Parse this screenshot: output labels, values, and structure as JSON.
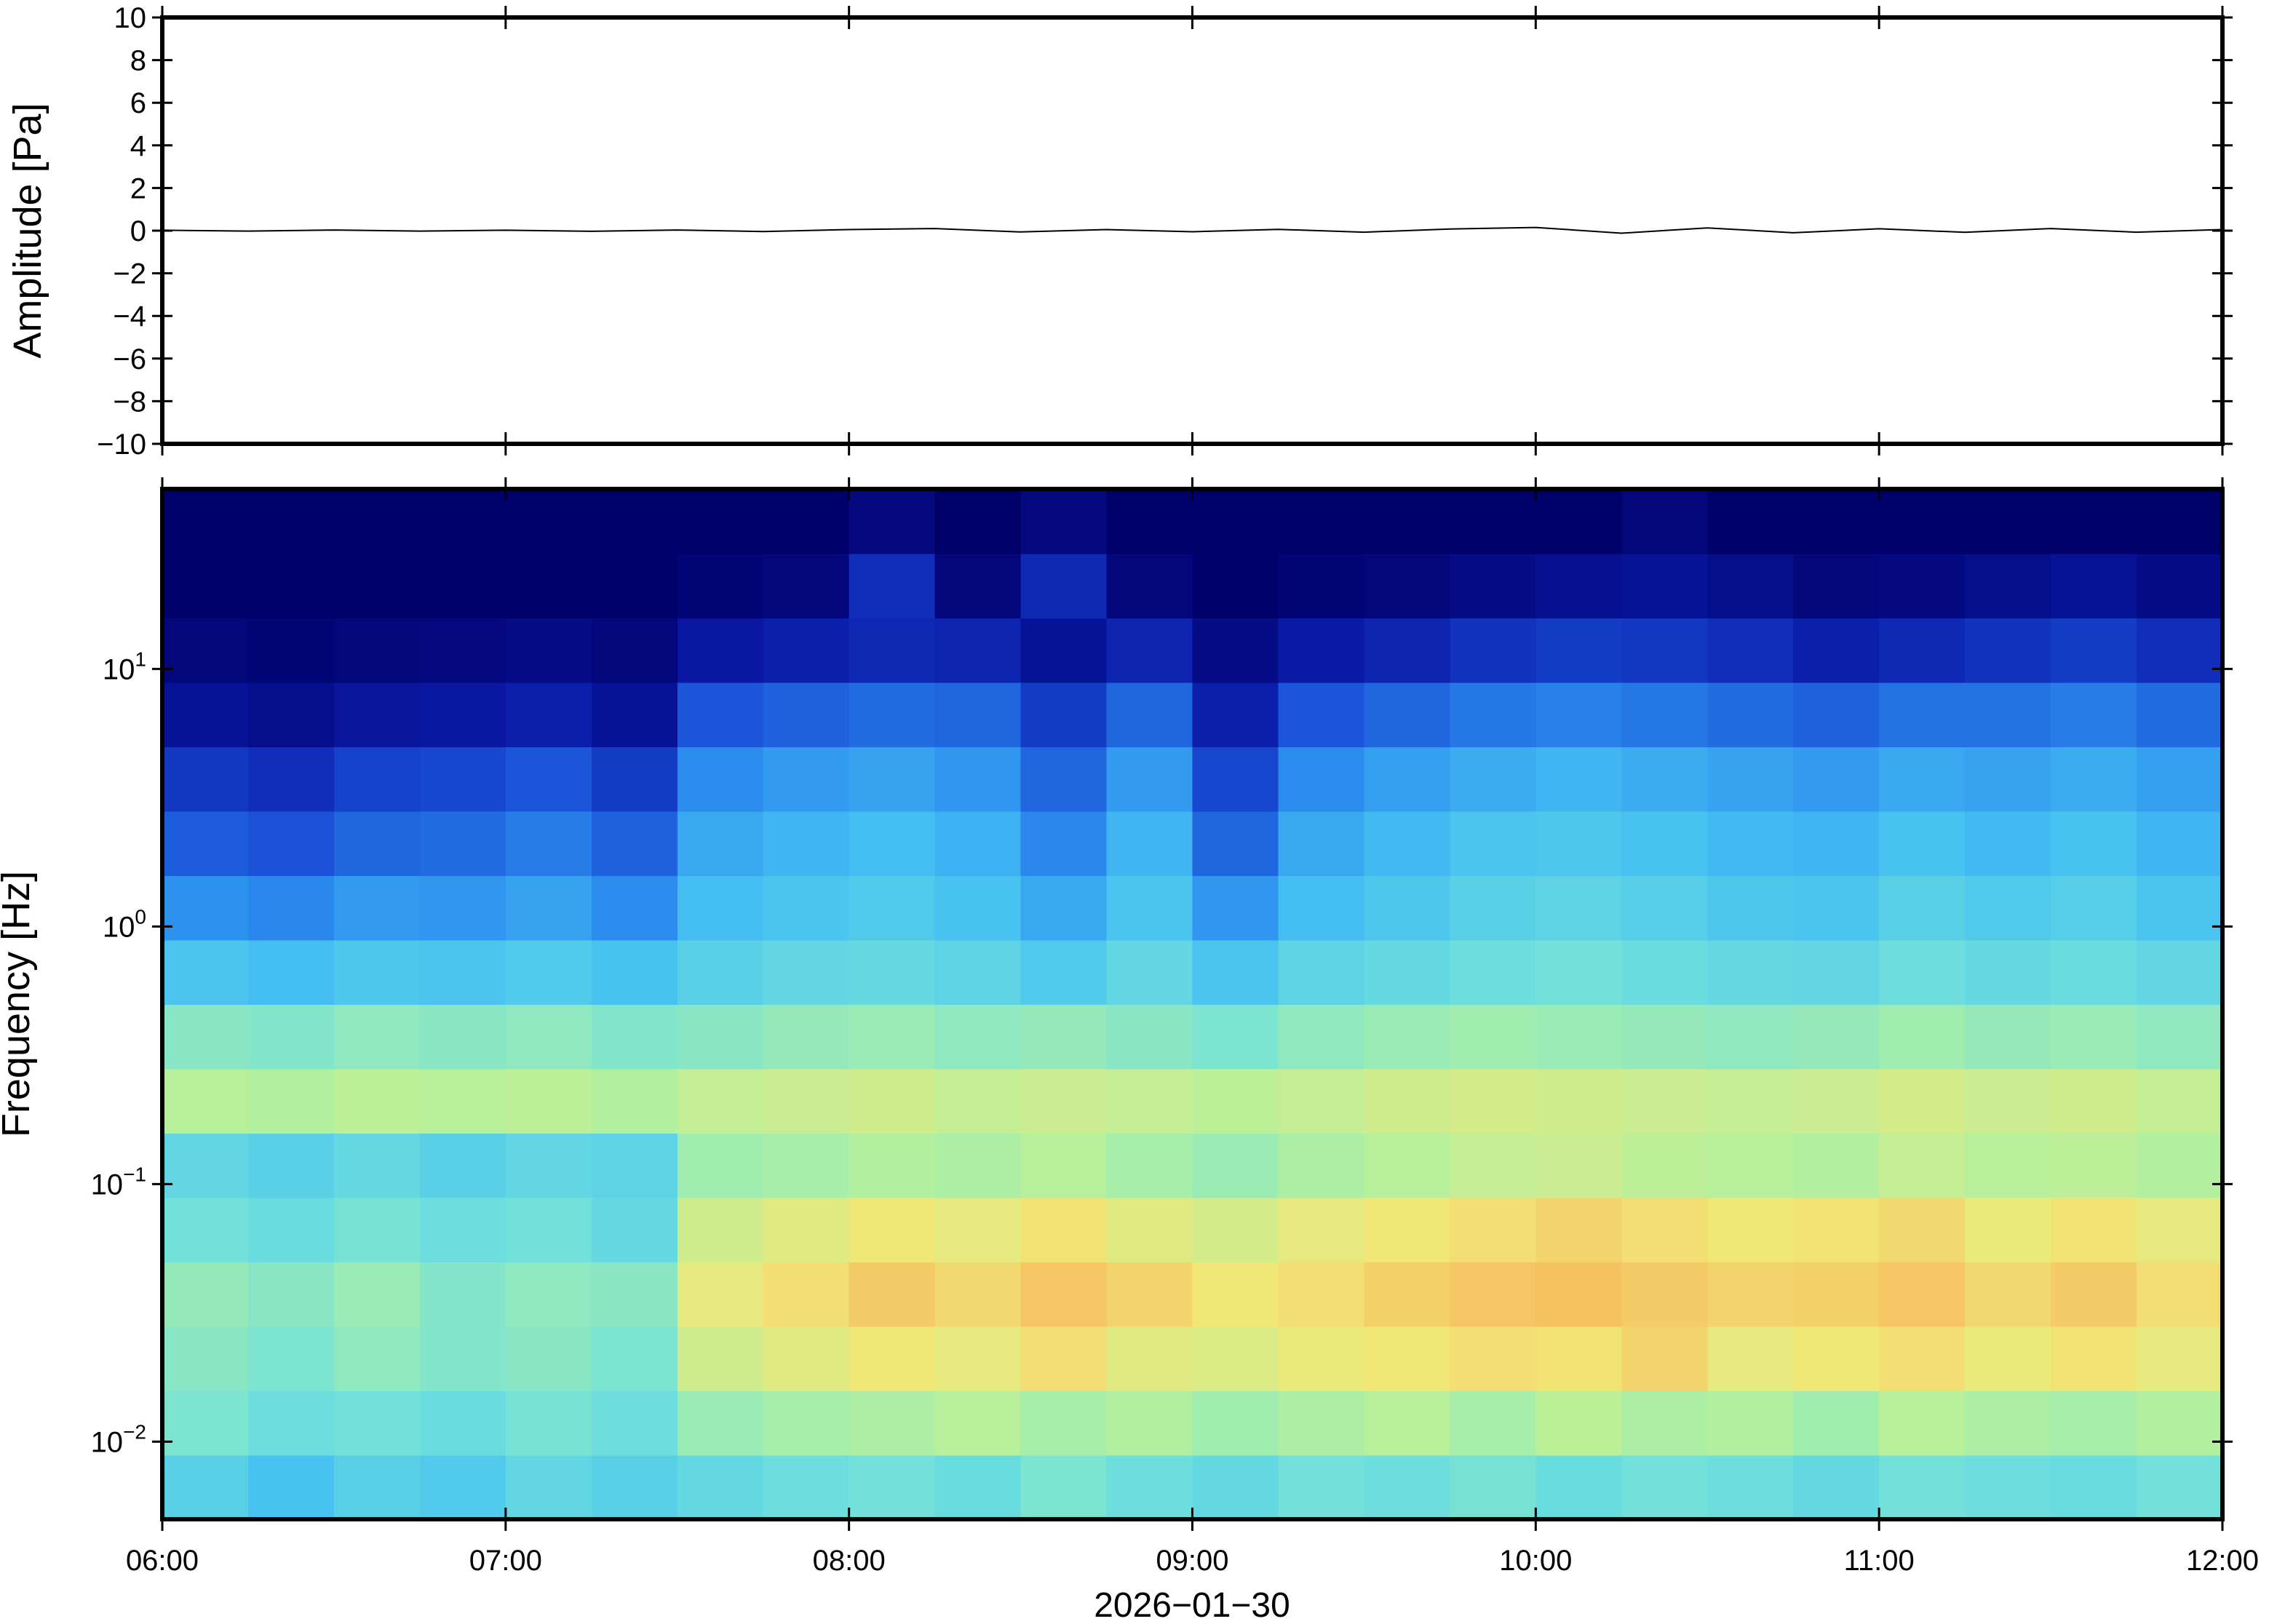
{
  "chart_data": [
    {
      "type": "line",
      "ylabel": "Amplitude [Pa]",
      "color": "#000000",
      "xlim": [
        6,
        12
      ],
      "ylim": [
        -10,
        10
      ],
      "yticks": [
        {
          "value": -10,
          "label": "−10"
        },
        {
          "value": -8,
          "label": "−8"
        },
        {
          "value": -6,
          "label": "−6"
        },
        {
          "value": -4,
          "label": "−4"
        },
        {
          "value": -2,
          "label": "−2"
        },
        0,
        2,
        4,
        6,
        8,
        10
      ],
      "x": [
        6,
        6.25,
        6.5,
        6.75,
        7,
        7.25,
        7.5,
        7.75,
        8,
        8.25,
        8.5,
        8.75,
        9,
        9.25,
        9.5,
        9.75,
        10,
        10.25,
        10.5,
        10.75,
        11,
        11.25,
        11.5,
        11.75,
        12
      ],
      "values": [
        0.02,
        -0.02,
        0.03,
        -0.02,
        0.02,
        -0.03,
        0.03,
        -0.04,
        0.05,
        0.1,
        -0.06,
        0.05,
        -0.05,
        0.06,
        -0.07,
        0.08,
        0.15,
        -0.12,
        0.13,
        -0.1,
        0.09,
        -0.08,
        0.1,
        -0.07,
        0.05
      ]
    },
    {
      "type": "heatmap",
      "ylabel": "Frequency [Hz]",
      "xlabel": "2026−01−30",
      "log_y": true,
      "xlim": [
        6,
        12
      ],
      "xticks": [
        {
          "value": 6,
          "label": "06:00"
        },
        {
          "value": 7,
          "label": "07:00"
        },
        {
          "value": 8,
          "label": "08:00"
        },
        {
          "value": 9,
          "label": "09:00"
        },
        {
          "value": 10,
          "label": "10:00"
        },
        {
          "value": 11,
          "label": "11:00"
        },
        {
          "value": 12,
          "label": "12:00"
        }
      ],
      "ylim": [
        0.005,
        50
      ],
      "yticks": [
        {
          "value": 0.01,
          "label": "10",
          "exponent": "−2"
        },
        {
          "value": 0.1,
          "label": "10",
          "exponent": "−1"
        },
        {
          "value": 1,
          "label": "10",
          "exponent": "0"
        },
        {
          "value": 10,
          "label": "10",
          "exponent": "1"
        }
      ],
      "zlim": [
        0,
        10
      ],
      "colormap": [
        "#00006a",
        "#0a1aa8",
        "#1a52d8",
        "#2c8eee",
        "#45c0f2",
        "#6fe0dc",
        "#b0f0a0",
        "#f0e878",
        "#f8b458",
        "#f07838"
      ],
      "z": [
        [
          5,
          4.5,
          5,
          4.8,
          5.2,
          5,
          5.3,
          5.5,
          5.6,
          5.4,
          5.8,
          5.5,
          5.3,
          5.6,
          5.5,
          5.7,
          5.4,
          5.6,
          5.5,
          5.3,
          5.6,
          5.5,
          5.4,
          5.6
        ],
        [
          5.8,
          5.5,
          5.6,
          5.4,
          5.7,
          5.5,
          6.3,
          6.5,
          6.6,
          6.8,
          6.5,
          6.7,
          6.4,
          6.6,
          6.8,
          6.5,
          6.9,
          6.6,
          6.7,
          6.4,
          6.8,
          6.6,
          6.5,
          6.7
        ],
        [
          6,
          5.8,
          6.1,
          5.9,
          6,
          5.8,
          7.2,
          7.5,
          7.8,
          7.6,
          8,
          7.5,
          7.4,
          7.7,
          7.8,
          8,
          7.9,
          8.2,
          7.6,
          7.8,
          8,
          7.7,
          7.9,
          7.6
        ],
        [
          6.2,
          6,
          6.3,
          5.9,
          6.1,
          6,
          7.6,
          8,
          8.4,
          8.1,
          8.5,
          8.2,
          7.8,
          8,
          8.3,
          8.5,
          8.6,
          8.4,
          8.2,
          8.3,
          8.5,
          8.1,
          8.4,
          8
        ],
        [
          5.6,
          5.4,
          5.7,
          5.5,
          5.6,
          5.3,
          7.2,
          7.5,
          7.8,
          7.6,
          7.9,
          7.5,
          7.3,
          7.6,
          7.8,
          8,
          8.2,
          8,
          7.8,
          7.9,
          8.1,
          7.7,
          7.9,
          7.6
        ],
        [
          5.2,
          5,
          5.3,
          5,
          5.2,
          5.1,
          6.4,
          6.5,
          6.7,
          6.6,
          6.8,
          6.5,
          6.3,
          6.6,
          6.8,
          7,
          7.1,
          6.9,
          6.8,
          6.7,
          7,
          6.8,
          6.9,
          6.7
        ],
        [
          6.8,
          6.7,
          6.9,
          6.8,
          6.9,
          6.7,
          7,
          7.1,
          7.2,
          7,
          7.1,
          7,
          6.9,
          7,
          7.2,
          7.3,
          7.2,
          7.1,
          7,
          7.1,
          7.3,
          7.1,
          7.2,
          7
        ],
        [
          6,
          5.9,
          6.1,
          6,
          6.1,
          5.9,
          6,
          6.2,
          6.3,
          6.1,
          6.2,
          6,
          5.8,
          6.1,
          6.3,
          6.4,
          6.3,
          6.2,
          6.1,
          6.2,
          6.4,
          6.2,
          6.3,
          6.1
        ],
        [
          4.6,
          4.4,
          4.7,
          4.6,
          4.8,
          4.5,
          5,
          5.2,
          5.3,
          5.1,
          4.8,
          5.2,
          4.6,
          5.1,
          5.3,
          5.5,
          5.6,
          5.4,
          5.3,
          5.2,
          5.5,
          5.3,
          5.4,
          5.2
        ],
        [
          3.4,
          3.2,
          3.6,
          3.5,
          3.8,
          3.3,
          4.4,
          4.6,
          4.8,
          4.5,
          3.9,
          4.6,
          3.5,
          4.4,
          4.7,
          5,
          5.1,
          4.9,
          4.7,
          4.6,
          5,
          4.8,
          4.9,
          4.6
        ],
        [
          2.4,
          2.2,
          2.6,
          2.7,
          3,
          2.5,
          3.9,
          4.2,
          4.4,
          4.1,
          3.2,
          4.2,
          2.6,
          3.9,
          4.3,
          4.6,
          4.7,
          4.5,
          4.3,
          4.2,
          4.5,
          4.3,
          4.5,
          4.2
        ],
        [
          1.7,
          1.5,
          1.9,
          2,
          2.3,
          1.8,
          3.3,
          3.6,
          3.8,
          3.5,
          2.6,
          3.6,
          2,
          3.3,
          3.7,
          4,
          4.2,
          4,
          3.8,
          3.6,
          3.9,
          3.8,
          4,
          3.7
        ],
        [
          0.8,
          0.6,
          0.9,
          1,
          1.2,
          0.8,
          2.3,
          2.5,
          2.7,
          2.6,
          1.8,
          2.6,
          1.2,
          2.3,
          2.6,
          2.9,
          3.1,
          2.9,
          2.7,
          2.5,
          2.8,
          2.8,
          3,
          2.7
        ],
        [
          0.3,
          0.2,
          0.3,
          0.4,
          0.5,
          0.3,
          1,
          1.2,
          1.4,
          1.3,
          0.8,
          1.3,
          0.5,
          1.1,
          1.3,
          1.6,
          1.8,
          1.7,
          1.5,
          1.2,
          1.4,
          1.6,
          1.8,
          1.5
        ],
        [
          0,
          0,
          0,
          0,
          0,
          0,
          0.2,
          0.3,
          1.5,
          0.3,
          1.4,
          0.3,
          0,
          0.2,
          0.3,
          0.5,
          0.7,
          0.8,
          0.6,
          0.3,
          0.4,
          0.6,
          0.8,
          0.5
        ],
        [
          0,
          0,
          0,
          0,
          0,
          0,
          0,
          0,
          0.4,
          0,
          0.4,
          0,
          0,
          0,
          0,
          0,
          0,
          0.3,
          0,
          0,
          0,
          0,
          0,
          0
        ]
      ]
    }
  ]
}
